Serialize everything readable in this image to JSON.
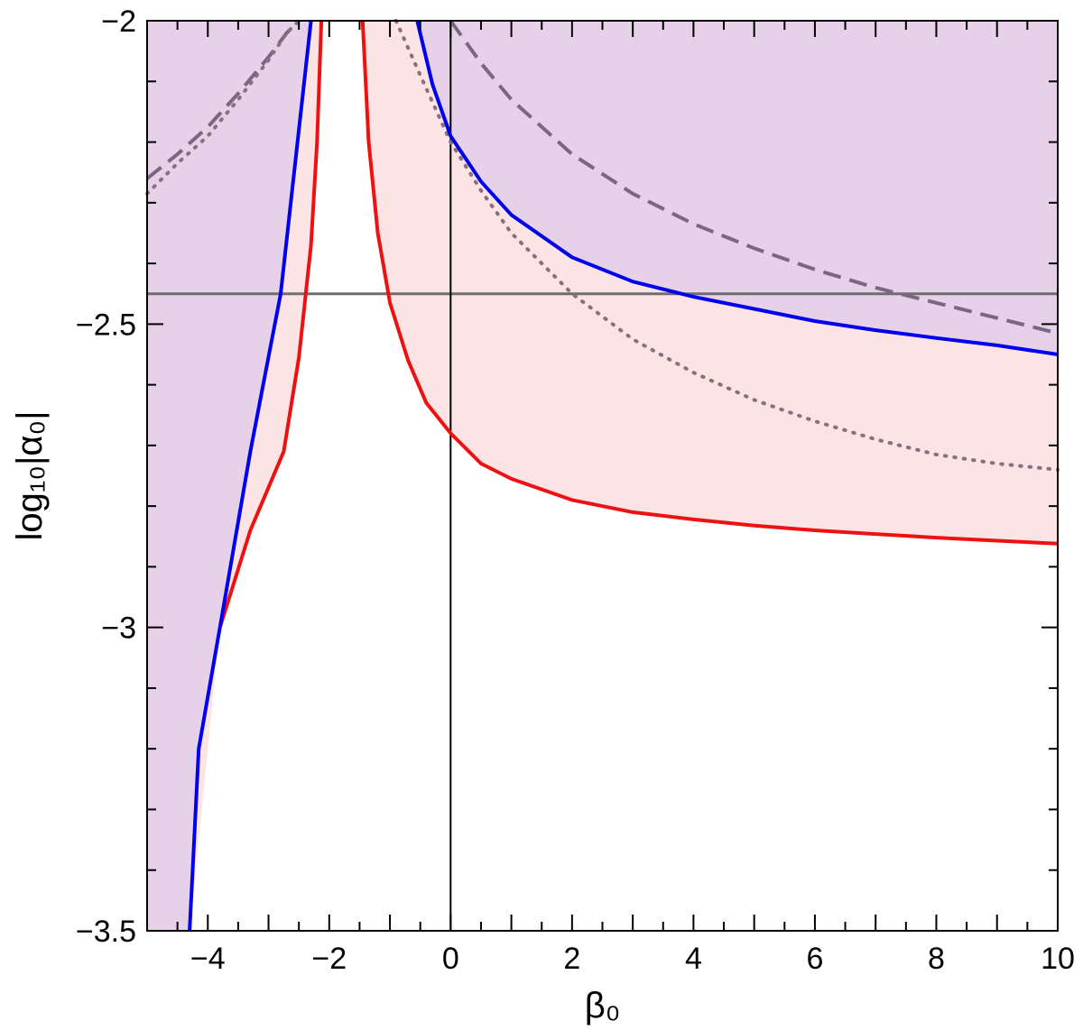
{
  "chart_data": {
    "type": "line",
    "title": "",
    "xlabel": "β₀",
    "ylabel": "log₁₀|α₀|",
    "xlim": [
      -5,
      10
    ],
    "ylim": [
      -3.5,
      -2
    ],
    "xticks": [
      -4,
      -2,
      0,
      2,
      4,
      6,
      8,
      10
    ],
    "xtick_labels": [
      "−4",
      "−2",
      "0",
      "2",
      "4",
      "6",
      "8",
      "10"
    ],
    "yticks": [
      -2,
      -2.5,
      -3,
      -3.5
    ],
    "ytick_labels": [
      "−2",
      "−2.5",
      "−3",
      "−3.5"
    ],
    "grid": false,
    "legend": "none",
    "colors": {
      "blue": "#0000ee",
      "red": "#ee1111",
      "purple_fill": "#e6d1e8",
      "pink_fill": "#fde4e4",
      "gray_line": "#6e6e6e",
      "dashed_line": "#7a6781",
      "dotted_line": "#85717f"
    },
    "series": [
      {
        "style": "solid",
        "color": "blue",
        "left_branch": {
          "x": [
            -4.3,
            -4.15,
            -3.8,
            -3.3,
            -2.8,
            -2.3
          ],
          "y": [
            -3.5,
            -3.2,
            -3.0,
            -2.71,
            -2.45,
            -2.0
          ]
        },
        "right_branch": {
          "x": [
            -0.55,
            -0.3,
            0.0,
            0.5,
            1.0,
            2.0,
            3.0,
            4.0,
            5.0,
            6.0,
            7.0,
            8.0,
            9.0,
            10.0
          ],
          "y": [
            -2.0,
            -2.105,
            -2.19,
            -2.265,
            -2.32,
            -2.39,
            -2.43,
            -2.455,
            -2.475,
            -2.495,
            -2.51,
            -2.523,
            -2.535,
            -2.55
          ]
        }
      },
      {
        "style": "solid",
        "color": "red",
        "left_branch": {
          "x": [
            -3.8,
            -3.3,
            -2.75,
            -2.5,
            -2.3,
            -2.2,
            -2.13
          ],
          "y": [
            -3.0,
            -2.84,
            -2.71,
            -2.555,
            -2.37,
            -2.2,
            -2.0
          ]
        },
        "right_branch": {
          "x": [
            -1.45,
            -1.35,
            -1.2,
            -1.0,
            -0.7,
            -0.4,
            0.0,
            0.5,
            1.0,
            2.0,
            3.0,
            4.0,
            5.0,
            6.0,
            7.0,
            8.0,
            9.0,
            10.0
          ],
          "y": [
            -2.0,
            -2.2,
            -2.35,
            -2.465,
            -2.56,
            -2.63,
            -2.68,
            -2.73,
            -2.755,
            -2.79,
            -2.81,
            -2.822,
            -2.832,
            -2.84,
            -2.846,
            -2.852,
            -2.857,
            -2.862
          ]
        }
      },
      {
        "style": "dashed",
        "color": "dashed_line",
        "left_branch": {
          "x": [
            -5.0,
            -4.5,
            -4.0,
            -3.5,
            -3.0,
            -2.7,
            -2.5
          ],
          "y": [
            -2.26,
            -2.22,
            -2.175,
            -2.12,
            -2.06,
            -2.02,
            -2.0
          ]
        },
        "right_branch": {
          "x": [
            0.0,
            0.5,
            1.0,
            2.0,
            3.0,
            4.0,
            5.0,
            6.0,
            7.0,
            8.0,
            9.0,
            10.0
          ],
          "y": [
            -2.0,
            -2.07,
            -2.13,
            -2.22,
            -2.285,
            -2.335,
            -2.375,
            -2.41,
            -2.44,
            -2.465,
            -2.49,
            -2.515
          ]
        }
      },
      {
        "style": "dotted",
        "color": "dotted_line",
        "left_branch": {
          "x": [
            -5.0,
            -4.5,
            -4.0,
            -3.5,
            -3.0,
            -2.7,
            -2.5
          ],
          "y": [
            -2.285,
            -2.235,
            -2.19,
            -2.13,
            -2.065,
            -2.02,
            -2.0
          ]
        },
        "right_branch": {
          "x": [
            -0.9,
            -0.5,
            0.0,
            0.5,
            1.0,
            2.0,
            3.0,
            4.0,
            5.0,
            6.0,
            7.0,
            8.0,
            9.0,
            10.0
          ],
          "y": [
            -2.0,
            -2.09,
            -2.2,
            -2.28,
            -2.35,
            -2.45,
            -2.525,
            -2.58,
            -2.625,
            -2.66,
            -2.69,
            -2.715,
            -2.73,
            -2.74
          ]
        }
      },
      {
        "style": "solid",
        "color": "gray_line",
        "x": [
          -5,
          10
        ],
        "y": [
          -2.45,
          -2.45
        ]
      },
      {
        "style": "solid",
        "color": "black",
        "x": [
          0,
          0
        ],
        "y": [
          -3.5,
          -2
        ]
      }
    ]
  }
}
